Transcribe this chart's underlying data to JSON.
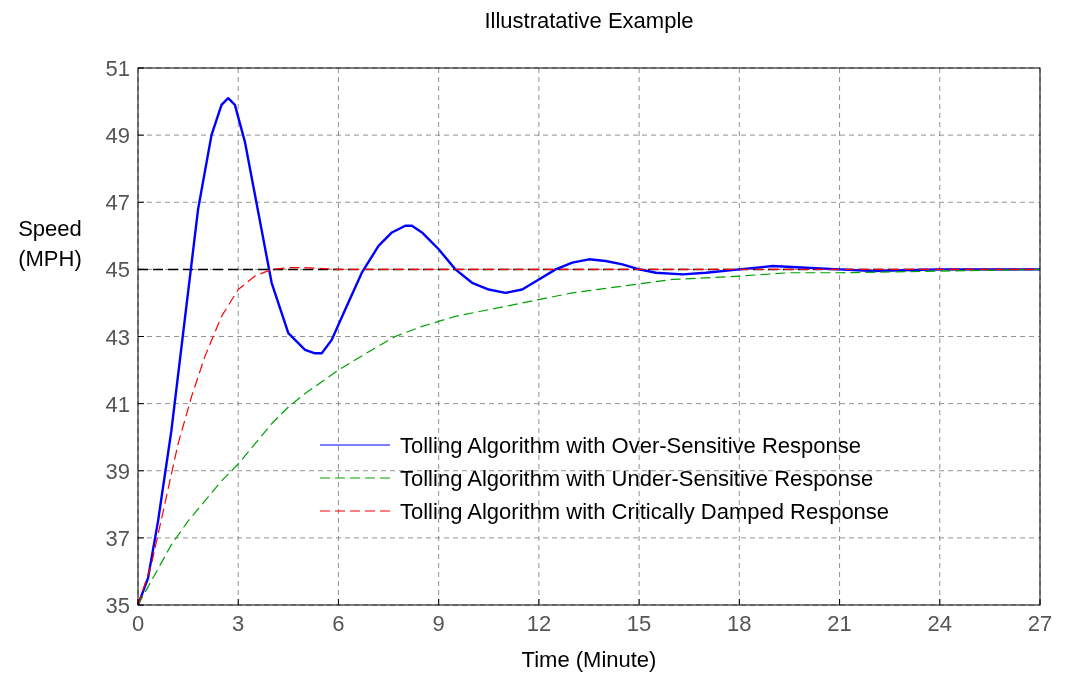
{
  "chart_data": {
    "type": "line",
    "title": "Illustratative Example",
    "xlabel": "Time (Minute)",
    "ylabel": "Speed (MPH)",
    "xlim": [
      0,
      27
    ],
    "xticks": [
      0,
      3,
      6,
      9,
      12,
      15,
      18,
      21,
      24,
      27
    ],
    "ylim": [
      35,
      51
    ],
    "yticks": [
      35,
      37,
      39,
      41,
      43,
      45,
      47,
      49,
      51
    ],
    "grid": true,
    "legend": "bottom right",
    "ref_lines": [
      {
        "axis": "y",
        "value": 45,
        "color": "#000000",
        "line_style": "dashed"
      }
    ],
    "series": [
      {
        "name": "Tolling Algorithm with Over-Sensitive Response",
        "color": "#0000ff",
        "line_style": "solid",
        "x": [
          0,
          0.3,
          0.6,
          1,
          1.4,
          1.8,
          2.2,
          2.5,
          2.7,
          2.9,
          3.2,
          3.6,
          4,
          4.5,
          5,
          5.3,
          5.5,
          5.8,
          6.2,
          6.7,
          7.2,
          7.6,
          8,
          8.2,
          8.5,
          9,
          9.5,
          10,
          10.5,
          11,
          11.5,
          12,
          12.5,
          13,
          13.5,
          14,
          14.5,
          15,
          15.5,
          16.3,
          17,
          18,
          19,
          20,
          21,
          22,
          24,
          27
        ],
        "values": [
          35,
          35.8,
          37.5,
          40.2,
          43.5,
          46.8,
          49,
          49.9,
          50.1,
          49.9,
          48.8,
          46.7,
          44.6,
          43.1,
          42.6,
          42.5,
          42.5,
          42.9,
          43.8,
          44.9,
          45.7,
          46.1,
          46.3,
          46.3,
          46.1,
          45.6,
          45,
          44.6,
          44.4,
          44.3,
          44.4,
          44.7,
          45,
          45.2,
          45.3,
          45.25,
          45.15,
          45,
          44.9,
          44.85,
          44.9,
          45,
          45.1,
          45.05,
          45,
          44.95,
          45,
          45
        ]
      },
      {
        "name": "Tolling Algorithm with Under-Sensitive Response",
        "color": "#00a000",
        "line_style": "dashed",
        "x": [
          0,
          0.5,
          1,
          1.5,
          2,
          2.5,
          3,
          3.5,
          4,
          4.5,
          5,
          6,
          7,
          7.7,
          8.5,
          9.5,
          10.5,
          12,
          13,
          14.5,
          16,
          18,
          19.5,
          21,
          24,
          27
        ],
        "values": [
          35,
          35.9,
          36.8,
          37.5,
          38.1,
          38.7,
          39.2,
          39.8,
          40.4,
          40.9,
          41.3,
          42,
          42.6,
          43,
          43.3,
          43.6,
          43.8,
          44.1,
          44.3,
          44.5,
          44.7,
          44.8,
          44.9,
          44.9,
          44.95,
          45
        ]
      },
      {
        "name": "Tolling Algorithm with Critically Damped Response",
        "color": "#ff0000",
        "line_style": "dashed",
        "x": [
          0,
          0.4,
          0.8,
          1.2,
          1.6,
          2,
          2.5,
          3,
          3.5,
          4,
          4.5,
          5,
          6,
          8,
          12,
          27
        ],
        "values": [
          35,
          36.2,
          38,
          39.8,
          41.2,
          42.4,
          43.6,
          44.4,
          44.8,
          45,
          45.05,
          45.05,
          45,
          45,
          45,
          45
        ]
      }
    ]
  }
}
